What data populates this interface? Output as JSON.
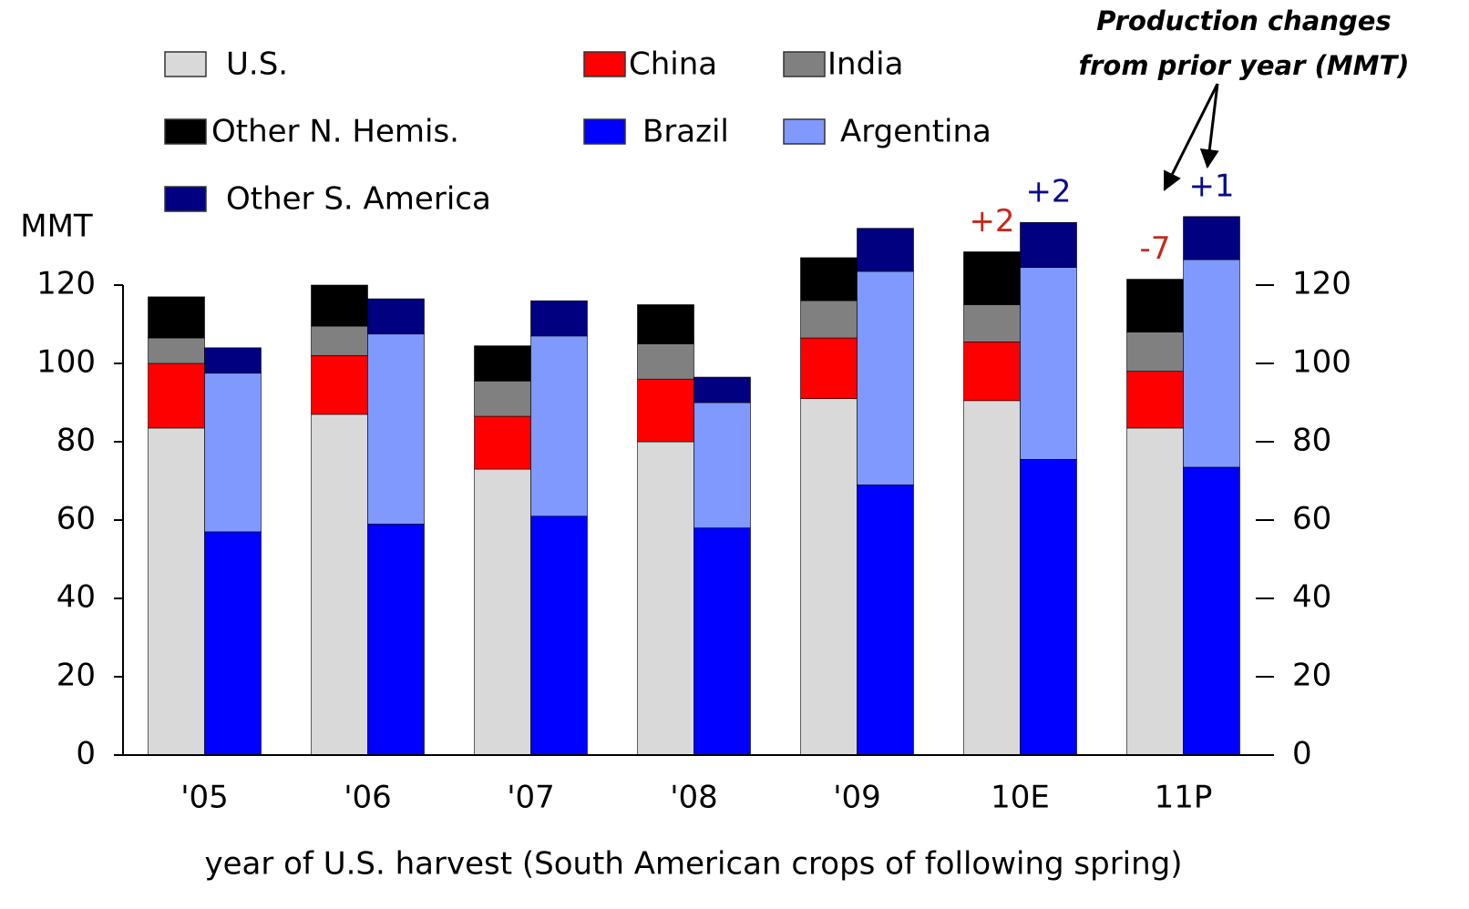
{
  "chart_data": {
    "type": "stacked-grouped-bar",
    "y_label": "MMT",
    "x_label": "year of U.S. harvest (South American crops of following spring)",
    "annotation": [
      "Production changes",
      "from prior year (MMT)"
    ],
    "categories": [
      "'05",
      "'06",
      "'07",
      "'08",
      "'09",
      "10E",
      "11P"
    ],
    "series": [
      {
        "name": "U.S.",
        "color": "#d9d9d9",
        "stack": 0,
        "values": [
          83.5,
          87,
          73,
          80,
          91,
          90.5,
          83.5
        ]
      },
      {
        "name": "China",
        "color": "#ff0000",
        "stack": 0,
        "values": [
          16.5,
          15,
          13.5,
          16,
          15.5,
          15,
          14.5
        ]
      },
      {
        "name": "India",
        "color": "#808080",
        "stack": 0,
        "values": [
          6.5,
          7.5,
          9,
          9,
          9.5,
          9.5,
          10
        ]
      },
      {
        "name": "Other N. Hemis.",
        "color": "#000000",
        "stack": 0,
        "values": [
          10.5,
          10.5,
          9,
          10,
          11,
          13.5,
          13.5
        ]
      },
      {
        "name": "Brazil",
        "color": "#0000ff",
        "stack": 1,
        "values": [
          57,
          59,
          61,
          58,
          69,
          75.5,
          73.5
        ]
      },
      {
        "name": "Argentina",
        "color": "#8099ff",
        "stack": 1,
        "values": [
          40.5,
          48.5,
          46,
          32,
          54.5,
          49,
          53
        ]
      },
      {
        "name": "Other S. America",
        "color": "#000080",
        "stack": 1,
        "values": [
          6.5,
          9,
          9,
          6.5,
          11,
          11.5,
          11
        ]
      }
    ],
    "changes": [
      {
        "color": "#c8281c",
        "values": [
          null,
          null,
          null,
          null,
          null,
          2,
          -7
        ],
        "value_labels": [
          null,
          null,
          null,
          null,
          null,
          "+2",
          "-7"
        ]
      },
      {
        "color": "#0a0a8c",
        "values": [
          null,
          null,
          null,
          null,
          null,
          2,
          1
        ],
        "value_labels": [
          null,
          null,
          null,
          null,
          null,
          "+2",
          "+1"
        ]
      }
    ],
    "ylim": [
      0,
      140
    ],
    "yticks": [
      0,
      20,
      40,
      60,
      80,
      100,
      120
    ],
    "mirror_y": true
  }
}
